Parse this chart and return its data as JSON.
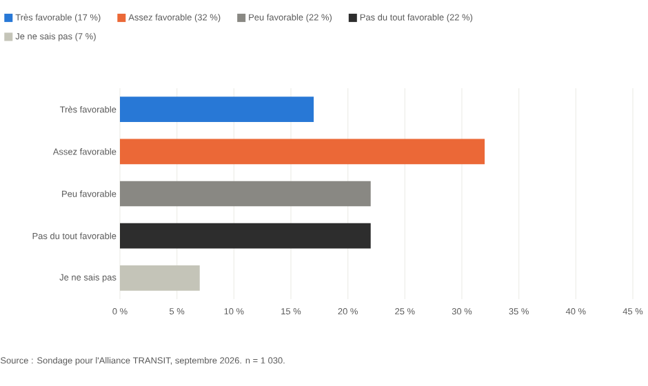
{
  "chart_data": {
    "type": "bar",
    "orientation": "horizontal",
    "categories": [
      "Très favorable",
      "Assez favorable",
      "Peu favorable",
      "Pas du tout favorable",
      "Je ne sais pas"
    ],
    "series": [
      {
        "name": "Très favorable (17 %)",
        "color": "#2878d6",
        "values": [
          17,
          null,
          null,
          null,
          null
        ]
      },
      {
        "name": "Assez favorable (32 %)",
        "color": "#eb6837",
        "values": [
          null,
          32,
          null,
          null,
          null
        ]
      },
      {
        "name": "Peu favorable (22 %)",
        "color": "#898883",
        "values": [
          null,
          null,
          22,
          null,
          null
        ]
      },
      {
        "name": "Pas du tout favorable (22 %)",
        "color": "#2d2d2d",
        "values": [
          null,
          null,
          null,
          22,
          null
        ]
      },
      {
        "name": "Je ne sais pas (7 %)",
        "color": "#c4c4b8",
        "values": [
          null,
          null,
          null,
          null,
          7
        ]
      }
    ],
    "xlim": [
      0,
      45
    ],
    "xticks": [
      {
        "value": 0,
        "label": "0 %"
      },
      {
        "value": 5,
        "label": "5 %"
      },
      {
        "value": 10,
        "label": "10 %"
      },
      {
        "value": 15,
        "label": "15 %"
      },
      {
        "value": 20,
        "label": "20 %"
      },
      {
        "value": 25,
        "label": "25 %"
      },
      {
        "value": 30,
        "label": "30 %"
      },
      {
        "value": 35,
        "label": "35 %"
      },
      {
        "value": 40,
        "label": "40 %"
      },
      {
        "value": 45,
        "label": "45 %"
      }
    ],
    "grid": "x",
    "legend": "top",
    "annotations": [
      "Source : Sondage pour l'Alliance TRANSIT, septembre 2026. n = 1 030."
    ]
  }
}
